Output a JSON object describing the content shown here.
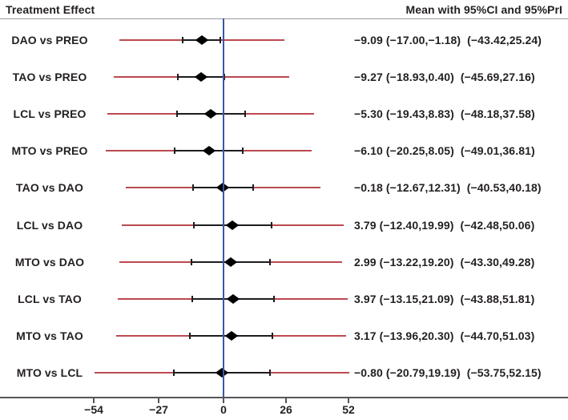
{
  "header": {
    "left": "Treatment Effect",
    "right": "Mean with 95%CI and 95%PrI"
  },
  "colors": {
    "text": "#231f20",
    "pri_line": "#bb4a50",
    "ci_line": "#1d1d1f",
    "diamond": "#000000",
    "zero_line": "#3a56a5",
    "axis_line": "#55565a",
    "header_rule": "#9b9da0"
  },
  "chart_data": {
    "type": "scatter",
    "subtype": "forest-plot",
    "title": "Treatment Effect",
    "xlabel": "",
    "ylabel": "",
    "legend": "none",
    "grid": false,
    "xlim": [
      -93,
      143.3
    ],
    "zero_reference_line": 0,
    "x_ticks": [
      {
        "value": -54,
        "label": "−54"
      },
      {
        "value": -27,
        "label": "−27"
      },
      {
        "value": 0,
        "label": "0"
      },
      {
        "value": 26,
        "label": "26"
      },
      {
        "value": 52,
        "label": "52"
      }
    ],
    "rows": [
      {
        "label": "DAO vs PREO",
        "mean": -9.09,
        "ci": [
          -17.0,
          -1.18
        ],
        "pri": [
          -43.42,
          25.24
        ],
        "text": "−9.09 (−17.00,−1.18)  (−43.42,25.24)"
      },
      {
        "label": "TAO vs PREO",
        "mean": -9.27,
        "ci": [
          -18.93,
          0.4
        ],
        "pri": [
          -45.69,
          27.16
        ],
        "text": "−9.27 (−18.93,0.40)  (−45.69,27.16)"
      },
      {
        "label": "LCL vs PREO",
        "mean": -5.3,
        "ci": [
          -19.43,
          8.83
        ],
        "pri": [
          -48.18,
          37.58
        ],
        "text": "−5.30 (−19.43,8.83)  (−48.18,37.58)"
      },
      {
        "label": "MTO vs PREO",
        "mean": -6.1,
        "ci": [
          -20.25,
          8.05
        ],
        "pri": [
          -49.01,
          36.81
        ],
        "text": "−6.10 (−20.25,8.05)  (−49.01,36.81)"
      },
      {
        "label": "TAO vs DAO",
        "mean": -0.18,
        "ci": [
          -12.67,
          12.31
        ],
        "pri": [
          -40.53,
          40.18
        ],
        "text": "−0.18 (−12.67,12.31)  (−40.53,40.18)"
      },
      {
        "label": "LCL vs DAO",
        "mean": 3.79,
        "ci": [
          -12.4,
          19.99
        ],
        "pri": [
          -42.48,
          50.06
        ],
        "text": "3.79 (−12.40,19.99)  (−42.48,50.06)"
      },
      {
        "label": "MTO vs DAO",
        "mean": 2.99,
        "ci": [
          -13.22,
          19.2
        ],
        "pri": [
          -43.3,
          49.28
        ],
        "text": "2.99 (−13.22,19.20)  (−43.30,49.28)"
      },
      {
        "label": "LCL vs TAO",
        "mean": 3.97,
        "ci": [
          -13.15,
          21.09
        ],
        "pri": [
          -43.88,
          51.81
        ],
        "text": "3.97 (−13.15,21.09)  (−43.88,51.81)"
      },
      {
        "label": "MTO vs TAO",
        "mean": 3.17,
        "ci": [
          -13.96,
          20.3
        ],
        "pri": [
          -44.7,
          51.03
        ],
        "text": "3.17 (−13.96,20.30)  (−44.70,51.03)"
      },
      {
        "label": "MTO vs LCL",
        "mean": -0.8,
        "ci": [
          -20.79,
          19.19
        ],
        "pri": [
          -53.75,
          52.15
        ],
        "text": "−0.80 (−20.79,19.19)  (−53.75,52.15)"
      }
    ]
  }
}
